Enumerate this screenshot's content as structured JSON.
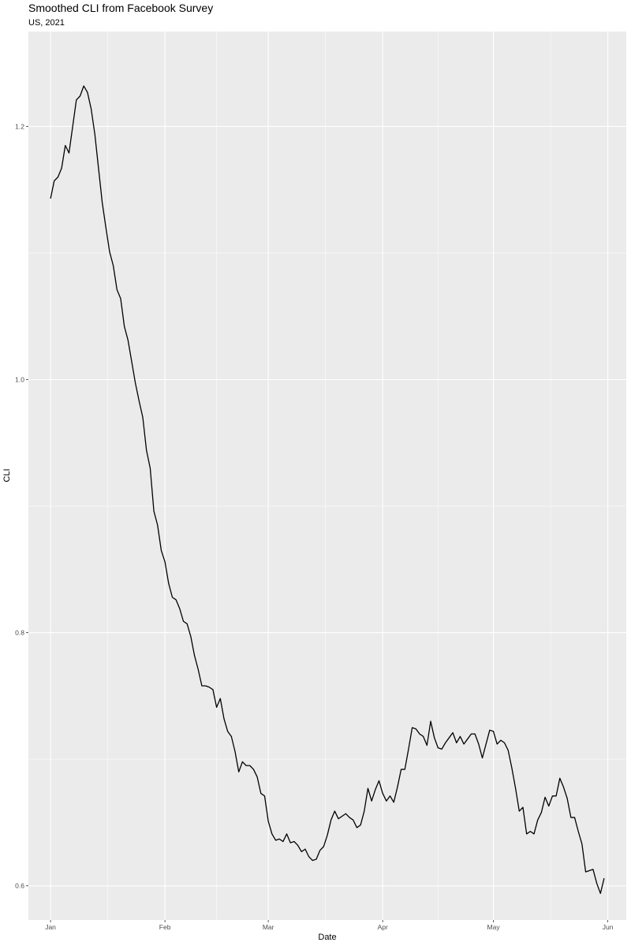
{
  "chart_data": {
    "type": "line",
    "title": "Smoothed CLI from Facebook Survey",
    "subtitle": "US, 2021",
    "xlabel": "Date",
    "ylabel": "CLI",
    "x_start": "2021-01-01",
    "x_end": "2021-05-31",
    "xlim": [
      "2020-12-26",
      "2021-06-06"
    ],
    "ylim": [
      0.573,
      1.275
    ],
    "y_ticks": [
      0.6,
      0.8,
      1.0,
      1.2
    ],
    "y_tick_labels": [
      "0.6",
      "0.8",
      "1.0",
      "1.2"
    ],
    "x_ticks": [
      "2021-01-01",
      "2021-02-01",
      "2021-03-01",
      "2021-04-01",
      "2021-05-01",
      "2021-06-01"
    ],
    "x_tick_labels": [
      "Jan",
      "Feb",
      "Mar",
      "Apr",
      "May",
      "Jun"
    ],
    "grid": true,
    "line_color": "#000000",
    "panel_color": "#ebebeb",
    "values": [
      1.143,
      1.157,
      1.16,
      1.167,
      1.185,
      1.179,
      1.2,
      1.221,
      1.224,
      1.232,
      1.227,
      1.214,
      1.194,
      1.167,
      1.14,
      1.12,
      1.101,
      1.09,
      1.071,
      1.064,
      1.042,
      1.031,
      1.014,
      0.997,
      0.983,
      0.97,
      0.944,
      0.93,
      0.896,
      0.885,
      0.865,
      0.856,
      0.839,
      0.828,
      0.826,
      0.819,
      0.809,
      0.807,
      0.797,
      0.782,
      0.771,
      0.758,
      0.758,
      0.757,
      0.755,
      0.741,
      0.748,
      0.732,
      0.722,
      0.718,
      0.706,
      0.69,
      0.698,
      0.695,
      0.695,
      0.692,
      0.686,
      0.673,
      0.671,
      0.651,
      0.641,
      0.636,
      0.637,
      0.635,
      0.641,
      0.634,
      0.635,
      0.632,
      0.627,
      0.629,
      0.623,
      0.62,
      0.621,
      0.628,
      0.631,
      0.64,
      0.652,
      0.659,
      0.653,
      0.655,
      0.657,
      0.654,
      0.652,
      0.646,
      0.648,
      0.659,
      0.677,
      0.667,
      0.676,
      0.683,
      0.673,
      0.667,
      0.671,
      0.666,
      0.678,
      0.692,
      0.692,
      0.708,
      0.725,
      0.724,
      0.72,
      0.718,
      0.711,
      0.73,
      0.717,
      0.709,
      0.708,
      0.713,
      0.717,
      0.721,
      0.713,
      0.718,
      0.712,
      0.716,
      0.72,
      0.72,
      0.712,
      0.701,
      0.712,
      0.723,
      0.722,
      0.712,
      0.715,
      0.713,
      0.707,
      0.693,
      0.677,
      0.659,
      0.662,
      0.641,
      0.643,
      0.641,
      0.652,
      0.658,
      0.67,
      0.663,
      0.671,
      0.671,
      0.685,
      0.678,
      0.669,
      0.654,
      0.654,
      0.643,
      0.633,
      0.611,
      0.612,
      0.613,
      0.602,
      0.594,
      0.606
    ]
  }
}
